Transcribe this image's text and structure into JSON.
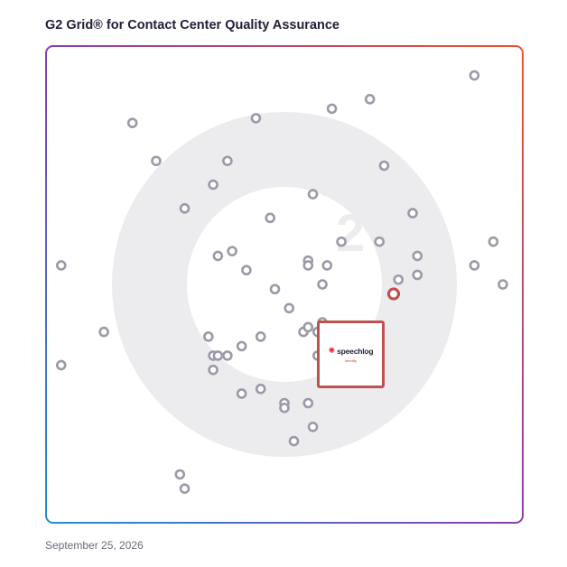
{
  "title": "G2 Grid® for Contact Center Quality Assurance",
  "date": "September 25, 2026",
  "watermark_icon": "g2-logo",
  "highlight": {
    "name": "speechlog",
    "tagline": "identify",
    "icon": "speechlog-logo-icon",
    "color": "#c0504d",
    "x": 73,
    "y": 48
  },
  "chart_data": {
    "type": "scatter",
    "title": "G2 Grid® for Contact Center Quality Assurance",
    "xlabel": "",
    "ylabel": "",
    "xlim": [
      0,
      100
    ],
    "ylim": [
      0,
      100
    ],
    "grid": "quadrants",
    "points": [
      [
        3,
        54
      ],
      [
        3,
        33
      ],
      [
        12,
        40
      ],
      [
        18,
        84
      ],
      [
        23,
        76
      ],
      [
        28,
        10
      ],
      [
        29,
        7
      ],
      [
        29,
        66
      ],
      [
        34,
        39
      ],
      [
        35,
        32
      ],
      [
        35,
        35
      ],
      [
        35,
        71
      ],
      [
        36,
        35
      ],
      [
        36,
        56
      ],
      [
        38,
        35
      ],
      [
        38,
        76
      ],
      [
        39,
        57
      ],
      [
        41,
        27
      ],
      [
        41,
        37
      ],
      [
        42,
        53
      ],
      [
        44,
        85
      ],
      [
        45,
        28
      ],
      [
        45,
        39
      ],
      [
        47,
        64
      ],
      [
        48,
        49
      ],
      [
        50,
        25
      ],
      [
        50,
        24
      ],
      [
        51,
        45
      ],
      [
        52,
        17
      ],
      [
        54,
        40
      ],
      [
        55,
        55
      ],
      [
        55,
        54
      ],
      [
        55,
        25
      ],
      [
        55,
        41
      ],
      [
        56,
        20
      ],
      [
        56,
        69
      ],
      [
        57,
        40
      ],
      [
        57,
        35
      ],
      [
        58,
        50
      ],
      [
        58,
        37
      ],
      [
        58,
        42
      ],
      [
        59,
        54
      ],
      [
        60,
        87
      ],
      [
        62,
        59
      ],
      [
        68,
        89
      ],
      [
        70,
        59
      ],
      [
        71,
        75
      ],
      [
        74,
        51
      ],
      [
        77,
        65
      ],
      [
        78,
        56
      ],
      [
        78,
        52
      ],
      [
        90,
        94
      ],
      [
        90,
        54
      ],
      [
        94,
        59
      ],
      [
        96,
        50
      ]
    ]
  }
}
